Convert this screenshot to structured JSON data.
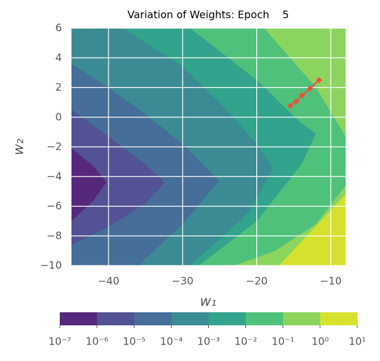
{
  "chart_data": {
    "type": "contour",
    "title": "Variation of Weights: Epoch    5",
    "x_label": "w₁",
    "y_label": "w₂",
    "xlim": [
      -45,
      -8
    ],
    "ylim": [
      -10,
      6
    ],
    "xticks": [
      {
        "value": -40,
        "label": "−40"
      },
      {
        "value": -30,
        "label": "−30"
      },
      {
        "value": -20,
        "label": "−20"
      },
      {
        "value": -10,
        "label": "−10"
      }
    ],
    "yticks": [
      {
        "value": -10,
        "label": "−10"
      },
      {
        "value": -8,
        "label": "−8"
      },
      {
        "value": -6,
        "label": "−6"
      },
      {
        "value": -4,
        "label": "−4"
      },
      {
        "value": -2,
        "label": "−2"
      },
      0,
      2,
      4,
      6
    ],
    "grid": true,
    "colorbar": {
      "ticks": [
        {
          "value": 1e-07,
          "label": "10⁻⁷"
        },
        {
          "value": 1e-06,
          "label": "10⁻⁶"
        },
        {
          "value": 1e-05,
          "label": "10⁻⁵"
        },
        {
          "value": 0.0001,
          "label": "10⁻⁴"
        },
        {
          "value": 0.001,
          "label": "10⁻³"
        },
        {
          "value": 0.01,
          "label": "10⁻²"
        },
        {
          "value": 0.1,
          "label": "10⁻¹"
        },
        {
          "value": 1,
          "label": "10⁰"
        },
        {
          "value": 10,
          "label": "10¹"
        }
      ],
      "colors": [
        "#56287b",
        "#525294",
        "#456e98",
        "#3b8b94",
        "#32a38c",
        "#4fc17a",
        "#8bd55e",
        "#d6e12e"
      ]
    },
    "contour_regions": [
      [
        [
          -45,
          -2.1
        ],
        [
          -42,
          -3.3
        ],
        [
          -40.3,
          -4.4
        ],
        [
          -42,
          -5.6
        ],
        [
          -45,
          -7
        ]
      ],
      [
        [
          -45,
          0.5
        ],
        [
          -40,
          -1.3
        ],
        [
          -35,
          -3.2
        ],
        [
          -32.4,
          -4.4
        ],
        [
          -35,
          -5.8
        ],
        [
          -40,
          -7.4
        ],
        [
          -45,
          -8.6
        ]
      ],
      [
        [
          -45,
          3.6
        ],
        [
          -40,
          2.0
        ],
        [
          -35,
          0.2
        ],
        [
          -30,
          -1.8
        ],
        [
          -25.1,
          -4.3
        ],
        [
          -30,
          -7.2
        ],
        [
          -36,
          -10
        ],
        [
          -45,
          -10
        ]
      ],
      [
        [
          -45,
          6
        ],
        [
          -38,
          6
        ],
        [
          -30,
          3.4
        ],
        [
          -25,
          1.0
        ],
        [
          -20,
          -1.8
        ],
        [
          -17.8,
          -3.4
        ],
        [
          -21,
          -6.4
        ],
        [
          -29,
          -10
        ],
        [
          -45,
          -10
        ]
      ],
      [
        [
          -45,
          6
        ],
        [
          -29,
          6
        ],
        [
          -20,
          2.5
        ],
        [
          -14,
          -0.4
        ],
        [
          -12,
          -1.1
        ],
        [
          -14,
          -3.2
        ],
        [
          -20,
          -7
        ],
        [
          -27.8,
          -10
        ],
        [
          -45,
          -10
        ]
      ],
      [
        [
          -45,
          6
        ],
        [
          -19,
          6
        ],
        [
          -12,
          2.0
        ],
        [
          -8,
          -1.3
        ],
        [
          -8,
          -4.6
        ],
        [
          -12,
          -7.2
        ],
        [
          -17.5,
          -9
        ],
        [
          -23,
          -10
        ],
        [
          -45,
          -10
        ]
      ],
      [
        [
          -45,
          6
        ],
        [
          -8,
          6
        ],
        [
          -8,
          -5.2
        ],
        [
          -17,
          -10
        ],
        [
          -45,
          -10
        ]
      ]
    ],
    "trajectory": {
      "color": "#e8533f",
      "x": [
        -11.6,
        -12.8,
        -13.9,
        -14.7,
        -15.5
      ],
      "y": [
        2.5,
        1.93,
        1.47,
        1.05,
        0.77
      ]
    }
  }
}
